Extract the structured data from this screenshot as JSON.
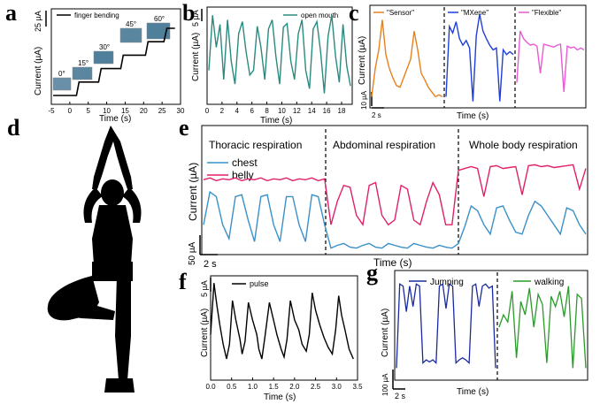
{
  "panel_labels": {
    "a": "a",
    "b": "b",
    "c": "c",
    "d": "d",
    "e": "e",
    "f": "f",
    "g": "g"
  },
  "colors": {
    "teal": "#2a8a80",
    "orange": "#e8801c",
    "blue": "#1f3fd6",
    "magenta": "#e85ad6",
    "chest": "#3a90c8",
    "belly": "#e0206a",
    "navy": "#1a2a9a",
    "green": "#2a9a2a",
    "black": "#000000"
  },
  "chart_data": [
    {
      "id": "a",
      "type": "line",
      "xlabel": "Time (s)",
      "ylabel": "Current (µA)",
      "scale_bar": "25 µA",
      "legend": "finger bending",
      "xlim": [
        -5,
        30
      ],
      "xticks": [
        "-5",
        "0",
        "5",
        "10",
        "15",
        "20",
        "25",
        "30"
      ],
      "angle_labels": [
        "0°",
        "15°",
        "30°",
        "45°",
        "60°"
      ],
      "x": [
        -4.5,
        1.8,
        2.5,
        7.8,
        8.5,
        13.8,
        14.5,
        20.5,
        21.2,
        25.5,
        26.3,
        28.5
      ],
      "y": [
        0,
        0,
        1,
        1,
        2,
        2,
        3,
        3,
        4,
        4,
        5,
        5
      ]
    },
    {
      "id": "b",
      "type": "line",
      "xlabel": "Time (s)",
      "ylabel": "Current (µA)",
      "scale_bar": "5 µA",
      "legend": "open mouth",
      "xlim": [
        0,
        19
      ],
      "xticks": [
        "0",
        "2",
        "4",
        "6",
        "8",
        "10",
        "12",
        "14",
        "16",
        "18"
      ],
      "x": [
        0,
        0.5,
        1,
        1.5,
        2,
        2.5,
        3,
        3.5,
        4,
        4.5,
        5,
        5.5,
        6,
        6.5,
        7,
        7.5,
        8,
        8.5,
        9,
        9.5,
        10,
        10.5,
        11,
        11.5,
        12,
        12.5,
        13,
        13.5,
        14,
        14.5,
        15,
        15.5,
        16,
        16.5,
        17,
        17.5,
        18,
        18.5,
        19
      ],
      "y": [
        0.35,
        0.95,
        0.6,
        0.85,
        0.25,
        0.9,
        0.45,
        0.2,
        0.75,
        0.88,
        0.55,
        0.3,
        0.35,
        0.83,
        0.6,
        0.25,
        0.8,
        0.9,
        0.5,
        0.2,
        0.82,
        0.86,
        0.45,
        0.25,
        0.75,
        0.9,
        0.35,
        0.15,
        0.8,
        0.88,
        0.55,
        0.1,
        0.72,
        0.95,
        0.5,
        0.22,
        0.85,
        0.4,
        0.18
      ]
    },
    {
      "id": "c",
      "type": "line",
      "xlabel": "Time (s)",
      "ylabel": "Current (µA)",
      "scale_bar": "10 µA",
      "time_bar": "2 s",
      "series": [
        {
          "name": "\"Sensor\"",
          "x": [
            0,
            1,
            2,
            3,
            4,
            5,
            6,
            7,
            8,
            9,
            10,
            11,
            12,
            13,
            14,
            15,
            16,
            17,
            18,
            19,
            20
          ],
          "y": [
            0.1,
            0.4,
            0.6,
            0.92,
            0.55,
            0.4,
            0.3,
            0.22,
            0.2,
            0.3,
            0.4,
            0.5,
            0.8,
            0.6,
            0.35,
            0.28,
            0.2,
            0.15,
            0.1,
            0.12,
            0.1
          ]
        },
        {
          "name": "\"MXene\"",
          "x": [
            0,
            1,
            2,
            3,
            4,
            5,
            6,
            7,
            8,
            9,
            10,
            11,
            12,
            13,
            14,
            15,
            16,
            17,
            18,
            19,
            20
          ],
          "y": [
            0.1,
            0.85,
            0.78,
            0.9,
            0.72,
            0.65,
            0.7,
            0.62,
            0.05,
            0.75,
            0.98,
            0.8,
            0.72,
            0.65,
            0.6,
            0.62,
            0.05,
            0.6,
            0.55,
            0.58,
            0.55
          ]
        },
        {
          "name": "\"Flexible\"",
          "x": [
            0,
            1,
            2,
            3,
            4,
            5,
            6,
            7,
            8,
            9,
            10,
            11,
            12,
            13,
            14,
            15,
            16,
            17,
            18,
            19,
            20
          ],
          "y": [
            0.25,
            0.8,
            0.72,
            0.68,
            0.65,
            0.66,
            0.64,
            0.35,
            0.66,
            0.65,
            0.64,
            0.63,
            0.65,
            0.66,
            0.15,
            0.64,
            0.62,
            0.63,
            0.6,
            0.62,
            0.6
          ]
        }
      ]
    },
    {
      "id": "e",
      "type": "line",
      "xlabel": "Time (s)",
      "ylabel": "Current (µA)",
      "scale_bar": "50 µA",
      "time_bar": "2 s",
      "section_titles": [
        "Thoracic respiration",
        "Abdominal respiration",
        "Whole body respiration"
      ],
      "series": [
        {
          "name": "chest",
          "x": [
            0,
            1,
            2,
            3,
            4,
            5,
            6,
            7,
            8,
            9,
            10,
            11,
            12,
            13,
            14,
            15,
            16,
            17,
            18,
            19,
            20,
            21,
            22,
            23,
            24,
            25,
            26,
            27,
            28,
            29,
            30,
            31,
            32,
            33,
            34,
            35,
            36,
            37,
            38,
            39,
            40,
            41,
            42,
            43,
            44,
            45,
            46,
            47,
            48,
            49,
            50,
            51,
            52,
            53,
            54,
            55,
            56,
            57,
            58,
            59,
            60
          ],
          "y": [
            0.3,
            0.65,
            0.6,
            0.3,
            0.15,
            0.6,
            0.62,
            0.35,
            0.12,
            0.6,
            0.62,
            0.3,
            0.12,
            0.6,
            0.6,
            0.3,
            0.12,
            0.62,
            0.6,
            0.3,
            0.05,
            0.08,
            0.1,
            0.06,
            0.05,
            0.08,
            0.1,
            0.06,
            0.05,
            0.1,
            0.08,
            0.06,
            0.05,
            0.1,
            0.08,
            0.06,
            0.05,
            0.08,
            0.06,
            0.05,
            0.1,
            0.28,
            0.5,
            0.45,
            0.3,
            0.2,
            0.48,
            0.5,
            0.35,
            0.22,
            0.2,
            0.4,
            0.55,
            0.5,
            0.4,
            0.3,
            0.2,
            0.48,
            0.45,
            0.3,
            0.2
          ]
        },
        {
          "name": "belly",
          "x": [
            0,
            1,
            2,
            3,
            4,
            5,
            6,
            7,
            8,
            9,
            10,
            11,
            12,
            13,
            14,
            15,
            16,
            17,
            18,
            19,
            20,
            21,
            22,
            23,
            24,
            25,
            26,
            27,
            28,
            29,
            30,
            31,
            32,
            33,
            34,
            35,
            36,
            37,
            38,
            39,
            40,
            41,
            42,
            43,
            44,
            45,
            46,
            47,
            48,
            49,
            50,
            51,
            52,
            53,
            54,
            55,
            56,
            57,
            58,
            59,
            60
          ],
          "y": [
            0.78,
            0.8,
            0.77,
            0.79,
            0.78,
            0.8,
            0.77,
            0.79,
            0.78,
            0.8,
            0.77,
            0.79,
            0.78,
            0.8,
            0.77,
            0.79,
            0.78,
            0.8,
            0.77,
            0.79,
            0.3,
            0.55,
            0.72,
            0.7,
            0.4,
            0.3,
            0.72,
            0.75,
            0.4,
            0.3,
            0.35,
            0.72,
            0.68,
            0.35,
            0.3,
            0.55,
            0.75,
            0.62,
            0.3,
            0.3,
            0.88,
            0.9,
            0.92,
            0.9,
            0.6,
            0.92,
            0.93,
            0.9,
            0.91,
            0.92,
            0.62,
            0.93,
            0.94,
            0.92,
            0.93,
            0.91,
            0.92,
            0.93,
            0.94,
            0.68,
            0.9
          ]
        }
      ]
    },
    {
      "id": "f",
      "type": "line",
      "xlabel": "Time (s)",
      "ylabel": "Current (µA)",
      "scale_bar": "5 µA",
      "legend": "pulse",
      "xlim": [
        0,
        3.5
      ],
      "xticks": [
        "0.0",
        "0.5",
        "1.0",
        "1.5",
        "2.0",
        "2.5",
        "3.0",
        "3.5"
      ],
      "x": [
        0,
        0.08,
        0.15,
        0.22,
        0.3,
        0.38,
        0.45,
        0.52,
        0.6,
        0.7,
        0.75,
        0.82,
        0.9,
        1.0,
        1.1,
        1.15,
        1.22,
        1.3,
        1.4,
        1.5,
        1.58,
        1.68,
        1.75,
        1.82,
        1.9,
        2.0,
        2.1,
        2.18,
        2.28,
        2.35,
        2.42,
        2.5,
        2.6,
        2.7,
        2.8,
        2.9,
        2.98,
        3.05,
        3.12,
        3.2,
        3.3,
        3.4
      ],
      "y": [
        0.45,
        0.98,
        0.75,
        0.55,
        0.35,
        0.2,
        0.35,
        0.8,
        0.6,
        0.4,
        0.25,
        0.38,
        0.78,
        0.6,
        0.45,
        0.3,
        0.2,
        0.45,
        0.78,
        0.6,
        0.45,
        0.3,
        0.22,
        0.4,
        0.8,
        0.6,
        0.5,
        0.35,
        0.28,
        0.45,
        0.88,
        0.7,
        0.55,
        0.42,
        0.32,
        0.25,
        0.5,
        0.85,
        0.65,
        0.5,
        0.3,
        0.2
      ]
    },
    {
      "id": "g",
      "type": "line",
      "xlabel": "Time (s)",
      "ylabel": "Current (µA)",
      "scale_bar": "100 µA",
      "time_bar": "2 s",
      "series": [
        {
          "name": "Jumping",
          "x": [
            0,
            1,
            2,
            3,
            4,
            5,
            6,
            7,
            8,
            9,
            10,
            11,
            12,
            13,
            14,
            15,
            16,
            17,
            18,
            19,
            20,
            21,
            22,
            23,
            24,
            25,
            26,
            27,
            28,
            29,
            30
          ],
          "y": [
            0.1,
            0.92,
            0.9,
            0.65,
            0.9,
            0.7,
            0.92,
            0.9,
            0.15,
            0.18,
            0.16,
            0.18,
            0.15,
            0.9,
            0.92,
            0.68,
            0.92,
            0.9,
            0.15,
            0.18,
            0.2,
            0.18,
            0.15,
            0.9,
            0.92,
            0.7,
            0.9,
            0.92,
            0.88,
            0.9,
            0.1
          ]
        },
        {
          "name": "walking",
          "x": [
            0,
            1,
            2,
            3,
            4,
            5,
            6,
            7,
            8,
            9,
            10,
            11,
            12,
            13,
            14,
            15,
            16,
            17,
            18,
            19,
            20
          ],
          "y": [
            0.5,
            0.62,
            0.55,
            0.85,
            0.2,
            0.75,
            0.62,
            0.88,
            0.5,
            0.82,
            0.72,
            0.15,
            0.8,
            0.7,
            0.85,
            0.6,
            0.9,
            0.1,
            0.82,
            0.78,
            0.1
          ]
        }
      ]
    }
  ]
}
